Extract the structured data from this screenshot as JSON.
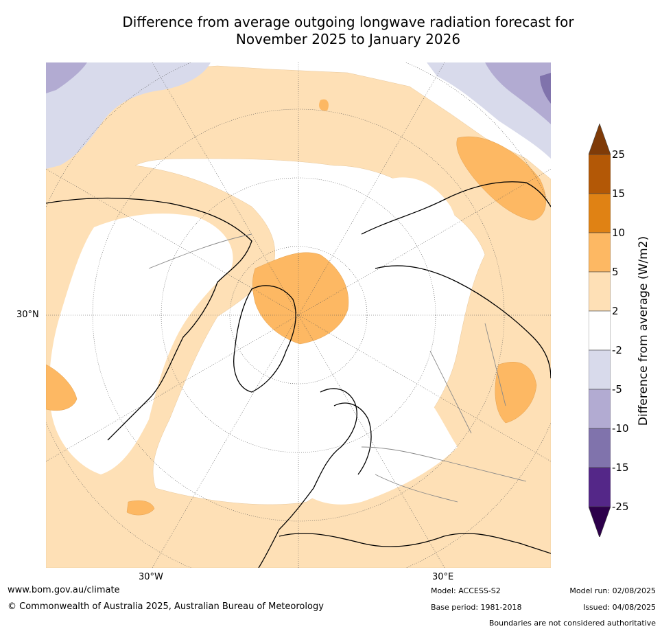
{
  "title_line1": "Difference from average outgoing longwave radiation forecast for",
  "title_line2": "November 2025 to January 2026",
  "map": {
    "projection": "north polar stereographic",
    "labels": {
      "lat_30n": "30°N",
      "lon_30w": "30°W",
      "lon_30e": "30°E"
    }
  },
  "legend": {
    "label": "Difference from average (W/m2)",
    "ticks": [
      "25",
      "15",
      "10",
      "5",
      "2",
      "-2",
      "-5",
      "-10",
      "-15",
      "-25"
    ],
    "bins": [
      {
        "range": ">25",
        "color": "#7f3b08"
      },
      {
        "range": "15 to 25",
        "color": "#b35806"
      },
      {
        "range": "10 to 15",
        "color": "#e08214"
      },
      {
        "range": "5 to 10",
        "color": "#fdb863"
      },
      {
        "range": "2 to 5",
        "color": "#fee0b6"
      },
      {
        "range": "-2 to 2",
        "color": "#ffffff"
      },
      {
        "range": "-5 to -2",
        "color": "#d8daeb"
      },
      {
        "range": "-10 to -5",
        "color": "#b2abd2"
      },
      {
        "range": "-15 to -10",
        "color": "#8073ac"
      },
      {
        "range": "-25 to -15",
        "color": "#542788"
      },
      {
        "range": "<-25",
        "color": "#2d004b"
      }
    ]
  },
  "footer": {
    "url": "www.bom.gov.au/climate",
    "copyright": "© Commonwealth of Australia 2025, Australian Bureau of Meteorology",
    "model": "Model: ACCESS-S2",
    "base_period": "Base period: 1981-2018",
    "model_run": "Model run: 02/08/2025",
    "issued": "Issued: 04/08/2025",
    "boundaries_note": "Boundaries are not considered authoritative"
  }
}
